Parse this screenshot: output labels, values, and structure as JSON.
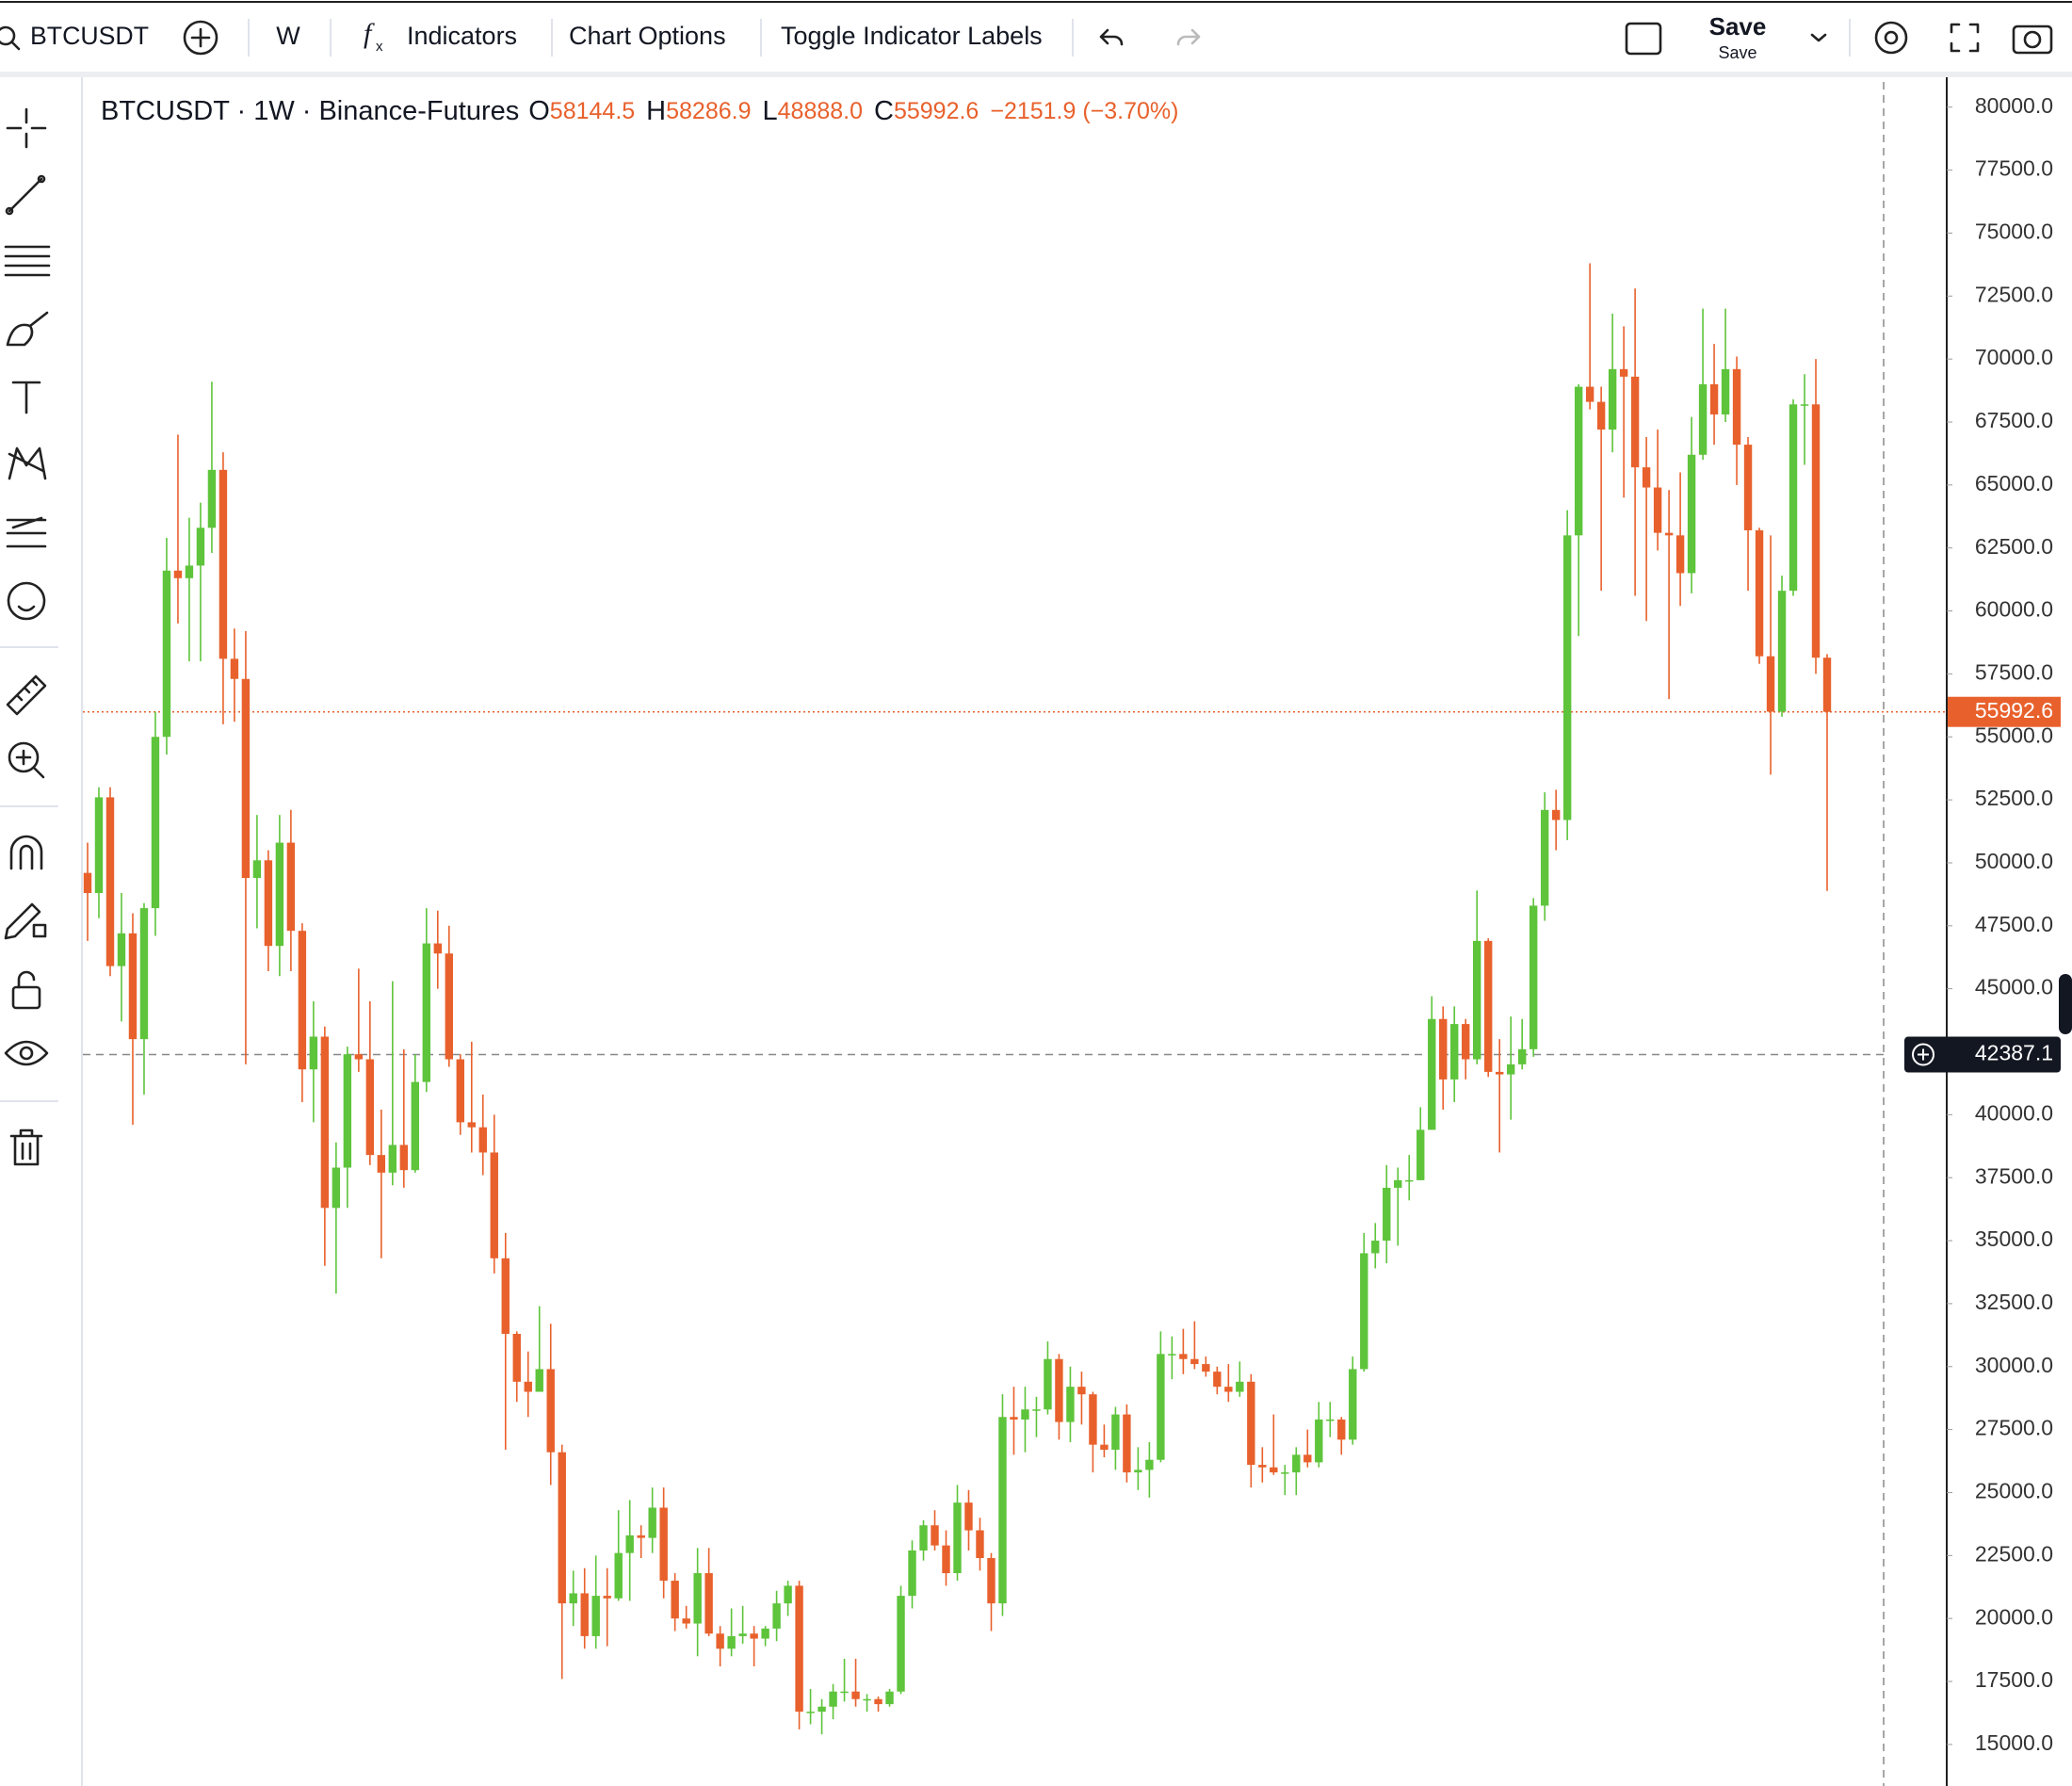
{
  "toolbar": {
    "symbol": "BTCUSDT",
    "interval": "W",
    "indicators": "Indicators",
    "chart_options": "Chart Options",
    "toggle_labels": "Toggle Indicator Labels",
    "save": "Save",
    "save_sub": "Save"
  },
  "chart_data": {
    "type": "candlestick",
    "title": "BTCUSDT · 1W · Binance-Futures",
    "legend": {
      "o": "O",
      "open": "58144.5",
      "h": "H",
      "high": "58286.9",
      "l": "L",
      "low": "48888.0",
      "c": "C",
      "close": "55992.6",
      "change": "−2151.9 (−3.70%)"
    },
    "up_color": "#5ec43b",
    "down_color": "#e8612c",
    "ylim": [
      13350,
      81000
    ],
    "yticks": [
      {
        "value": 15000,
        "label": "15000.0"
      },
      {
        "value": 17500,
        "label": "17500.0"
      },
      {
        "value": 20000,
        "label": "20000.0"
      },
      {
        "value": 22500,
        "label": "22500.0"
      },
      {
        "value": 25000,
        "label": "25000.0"
      },
      {
        "value": 27500,
        "label": "27500.0"
      },
      {
        "value": 30000,
        "label": "30000.0"
      },
      {
        "value": 32500,
        "label": "32500.0"
      },
      {
        "value": 35000,
        "label": "35000.0"
      },
      {
        "value": 37500,
        "label": "37500.0"
      },
      {
        "value": 40000,
        "label": "40000.0"
      },
      {
        "value": 42500,
        "label": "42500.0"
      },
      {
        "value": 45000,
        "label": "45000.0"
      },
      {
        "value": 47500,
        "label": "47500.0"
      },
      {
        "value": 50000,
        "label": "50000.0"
      },
      {
        "value": 52500,
        "label": "52500.0"
      },
      {
        "value": 55000,
        "label": "55000.0"
      },
      {
        "value": 57500,
        "label": "57500.0"
      },
      {
        "value": 60000,
        "label": "60000.0"
      },
      {
        "value": 62500,
        "label": "62500.0"
      },
      {
        "value": 65000,
        "label": "65000.0"
      },
      {
        "value": 67500,
        "label": "67500.0"
      },
      {
        "value": 70000,
        "label": "70000.0"
      },
      {
        "value": 72500,
        "label": "72500.0"
      },
      {
        "value": 75000,
        "label": "75000.0"
      },
      {
        "value": 77500,
        "label": "77500.0"
      },
      {
        "value": 80000,
        "label": "80000.0"
      }
    ],
    "last_price": {
      "value": 55992.6,
      "label": "55992.6"
    },
    "crosshair": {
      "value": 42387.1,
      "label": "42387.1"
    },
    "candles": [
      [
        49600,
        50800,
        46900,
        48800
      ],
      [
        48800,
        53000,
        47800,
        52600
      ],
      [
        52600,
        53000,
        45500,
        45900
      ],
      [
        45900,
        48800,
        43700,
        47200
      ],
      [
        47200,
        48000,
        39600,
        43000
      ],
      [
        43000,
        48400,
        40800,
        48200
      ],
      [
        48200,
        56000,
        47100,
        55000
      ],
      [
        55000,
        62900,
        54300,
        61600
      ],
      [
        61600,
        67000,
        59500,
        61300
      ],
      [
        61300,
        63700,
        58000,
        61800
      ],
      [
        61800,
        64300,
        58000,
        63300
      ],
      [
        63300,
        69100,
        62300,
        65600
      ],
      [
        65600,
        66300,
        55500,
        58100
      ],
      [
        58100,
        59300,
        55600,
        57300
      ],
      [
        57300,
        59200,
        42000,
        49400
      ],
      [
        49400,
        51900,
        47400,
        50100
      ],
      [
        50100,
        50500,
        45700,
        46700
      ],
      [
        46700,
        51900,
        45500,
        50800
      ],
      [
        50800,
        52100,
        45700,
        47300
      ],
      [
        47300,
        47600,
        40500,
        41800
      ],
      [
        41800,
        44500,
        39700,
        43100
      ],
      [
        43100,
        43500,
        34000,
        36300
      ],
      [
        36300,
        38900,
        32900,
        37900
      ],
      [
        37900,
        42700,
        36300,
        42400
      ],
      [
        42400,
        45800,
        41700,
        42200
      ],
      [
        42200,
        44500,
        38000,
        38400
      ],
      [
        38400,
        40200,
        34300,
        37700
      ],
      [
        37700,
        45300,
        37200,
        38800
      ],
      [
        38800,
        42600,
        37100,
        37800
      ],
      [
        37800,
        42400,
        37700,
        41300
      ],
      [
        41300,
        48200,
        40900,
        46800
      ],
      [
        46800,
        48100,
        45000,
        46400
      ],
      [
        46400,
        47500,
        41900,
        42200
      ],
      [
        42200,
        42400,
        39200,
        39700
      ],
      [
        39700,
        42900,
        38500,
        39500
      ],
      [
        39500,
        40800,
        37600,
        38500
      ],
      [
        38500,
        40000,
        33700,
        34300
      ],
      [
        34300,
        35300,
        26700,
        31300
      ],
      [
        31300,
        31400,
        28600,
        29400
      ],
      [
        29400,
        30600,
        28000,
        29000
      ],
      [
        29000,
        32400,
        29000,
        29900
      ],
      [
        29900,
        31700,
        25300,
        26600
      ],
      [
        26600,
        26900,
        17600,
        20600
      ],
      [
        20600,
        21900,
        19700,
        21000
      ],
      [
        21000,
        22000,
        18800,
        19300
      ],
      [
        19300,
        22500,
        18800,
        20900
      ],
      [
        20900,
        22000,
        18900,
        20800
      ],
      [
        20800,
        24300,
        20700,
        22600
      ],
      [
        22600,
        24700,
        20700,
        23300
      ],
      [
        23300,
        23700,
        22400,
        23200
      ],
      [
        23200,
        25200,
        22600,
        24400
      ],
      [
        24400,
        25200,
        20800,
        21500
      ],
      [
        21500,
        21800,
        19500,
        20000
      ],
      [
        20000,
        20500,
        19600,
        19800
      ],
      [
        19800,
        22800,
        18500,
        21800
      ],
      [
        21800,
        22800,
        19300,
        19400
      ],
      [
        19400,
        19700,
        18100,
        18800
      ],
      [
        18800,
        20400,
        18500,
        19300
      ],
      [
        19300,
        20500,
        19000,
        19400
      ],
      [
        19400,
        19700,
        18100,
        19200
      ],
      [
        19200,
        19700,
        18900,
        19600
      ],
      [
        19600,
        21100,
        19100,
        20600
      ],
      [
        20600,
        21500,
        20100,
        21300
      ],
      [
        21300,
        21500,
        15600,
        16300
      ],
      [
        16300,
        17200,
        15800,
        16300
      ],
      [
        16300,
        16800,
        15400,
        16500
      ],
      [
        16500,
        17400,
        16000,
        17100
      ],
      [
        17100,
        18400,
        16700,
        17100
      ],
      [
        17100,
        18400,
        16500,
        16800
      ],
      [
        16800,
        17000,
        16300,
        16800
      ],
      [
        16800,
        16900,
        16300,
        16600
      ],
      [
        16600,
        17200,
        16500,
        17100
      ],
      [
        17100,
        21300,
        17000,
        20900
      ],
      [
        20900,
        23100,
        20400,
        22700
      ],
      [
        22700,
        23900,
        22300,
        23700
      ],
      [
        23700,
        24300,
        22700,
        22900
      ],
      [
        22900,
        23500,
        21300,
        21800
      ],
      [
        21800,
        25300,
        21500,
        24600
      ],
      [
        24600,
        25100,
        22700,
        23500
      ],
      [
        23500,
        24000,
        21900,
        22400
      ],
      [
        22400,
        22600,
        19500,
        20600
      ],
      [
        20600,
        28900,
        20100,
        28000
      ],
      [
        28000,
        29200,
        26500,
        27900
      ],
      [
        27900,
        29200,
        26600,
        28300
      ],
      [
        28300,
        28800,
        27200,
        28300
      ],
      [
        28300,
        31000,
        28100,
        30300
      ],
      [
        30300,
        30500,
        27100,
        27800
      ],
      [
        27800,
        30000,
        27000,
        29200
      ],
      [
        29200,
        29800,
        27700,
        28900
      ],
      [
        28900,
        29000,
        25800,
        26900
      ],
      [
        26900,
        27700,
        26400,
        26700
      ],
      [
        26700,
        28400,
        25900,
        28100
      ],
      [
        28100,
        28500,
        25400,
        25800
      ],
      [
        25800,
        26800,
        25100,
        25900
      ],
      [
        25900,
        27000,
        24800,
        26300
      ],
      [
        26300,
        31400,
        26200,
        30500
      ],
      [
        30500,
        31200,
        29500,
        30500
      ],
      [
        30500,
        31500,
        29700,
        30300
      ],
      [
        30300,
        31800,
        29900,
        30100
      ],
      [
        30100,
        30400,
        29600,
        29800
      ],
      [
        29800,
        30000,
        28900,
        29200
      ],
      [
        29200,
        30100,
        28600,
        29000
      ],
      [
        29000,
        30200,
        28800,
        29400
      ],
      [
        29400,
        29700,
        25200,
        26100
      ],
      [
        26100,
        26800,
        25400,
        26000
      ],
      [
        26000,
        28100,
        25700,
        25800
      ],
      [
        25800,
        26100,
        24900,
        25800
      ],
      [
        25800,
        26800,
        24900,
        26500
      ],
      [
        26500,
        27500,
        26000,
        26200
      ],
      [
        26200,
        28600,
        26000,
        27900
      ],
      [
        27900,
        28600,
        27200,
        27900
      ],
      [
        27900,
        28000,
        26500,
        27100
      ],
      [
        27100,
        30400,
        26900,
        29900
      ],
      [
        29900,
        35300,
        29800,
        34500
      ],
      [
        34500,
        35700,
        33900,
        35000
      ],
      [
        35000,
        38000,
        34100,
        37100
      ],
      [
        37100,
        37900,
        34800,
        37400
      ],
      [
        37400,
        38400,
        36600,
        37400
      ],
      [
        37400,
        40300,
        37400,
        39400
      ],
      [
        39400,
        44700,
        39400,
        43800
      ],
      [
        43800,
        44300,
        40200,
        41400
      ],
      [
        41400,
        44300,
        40500,
        43600
      ],
      [
        43600,
        43800,
        41400,
        42200
      ],
      [
        42200,
        48900,
        42000,
        46900
      ],
      [
        46900,
        47000,
        41500,
        41700
      ],
      [
        41700,
        43000,
        38500,
        41600
      ],
      [
        41600,
        43900,
        39800,
        42000
      ],
      [
        42000,
        43800,
        41800,
        42600
      ],
      [
        42600,
        48600,
        42300,
        48300
      ],
      [
        48300,
        52800,
        47700,
        52100
      ],
      [
        52100,
        52900,
        50500,
        51700
      ],
      [
        51700,
        64000,
        50900,
        63000
      ],
      [
        63000,
        69000,
        59000,
        68900
      ],
      [
        68900,
        73800,
        68000,
        68300
      ],
      [
        68300,
        68900,
        60800,
        67200
      ],
      [
        67200,
        71800,
        66300,
        69600
      ],
      [
        69600,
        71300,
        64500,
        69300
      ],
      [
        69300,
        72800,
        60600,
        65700
      ],
      [
        65700,
        66900,
        59600,
        64900
      ],
      [
        64900,
        67200,
        62400,
        63100
      ],
      [
        63100,
        64800,
        56500,
        63000
      ],
      [
        63000,
        65500,
        60200,
        61500
      ],
      [
        61500,
        67700,
        60700,
        66200
      ],
      [
        66200,
        72000,
        66000,
        69000
      ],
      [
        69000,
        70600,
        66600,
        67800
      ],
      [
        67800,
        72000,
        67500,
        69600
      ],
      [
        69600,
        70100,
        65000,
        66600
      ],
      [
        66600,
        66900,
        60800,
        63200
      ],
      [
        63200,
        63300,
        57900,
        58200
      ],
      [
        58200,
        63000,
        53500,
        56000
      ],
      [
        56000,
        61400,
        55800,
        60800
      ],
      [
        60800,
        68400,
        60600,
        68200
      ],
      [
        68200,
        69400,
        65800,
        68200
      ],
      [
        68200,
        70000,
        57500,
        58144.5
      ],
      [
        58144.5,
        58286.9,
        48888.0,
        55992.6
      ]
    ]
  }
}
